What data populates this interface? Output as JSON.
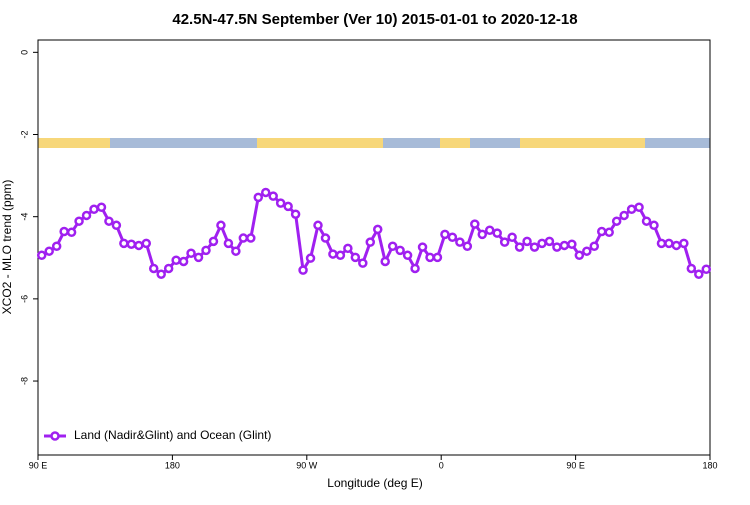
{
  "chart_data": {
    "type": "line",
    "title": "42.5N-47.5N September (Ver 10)   2015-01-01 to 2020-12-18",
    "x_label": "Longitude (deg E)",
    "y_label": "XCO2 - MLO trend (ppm)",
    "x": [
      92.5,
      97.5,
      102.5,
      107.5,
      112.5,
      117.5,
      122.5,
      127.5,
      132.5,
      137.5,
      142.5,
      147.5,
      152.5,
      157.5,
      162.5,
      167.5,
      172.5,
      177.5,
      182.5,
      187.5,
      192.5,
      197.5,
      202.5,
      207.5,
      212.5,
      217.5,
      222.5,
      227.5,
      232.5,
      237.5,
      242.5,
      247.5,
      252.5,
      257.5,
      262.5,
      267.5,
      272.5,
      277.5,
      282.5,
      287.5,
      292.5,
      297.5,
      302.5,
      307.5,
      312.5,
      317.5,
      322.5,
      327.5,
      332.5,
      337.5,
      342.5,
      347.5,
      352.5,
      357.5,
      362.5,
      367.5,
      372.5,
      377.5,
      382.5,
      387.5,
      392.5,
      397.5,
      402.5,
      407.5,
      412.5,
      417.5,
      422.5,
      427.5,
      432.5,
      437.5,
      442.5,
      447.5,
      452.5,
      457.5,
      462.5,
      467.5,
      472.5,
      477.5,
      482.5,
      487.5,
      492.5,
      497.5,
      502.5,
      507.5,
      512.5,
      517.5,
      522.5,
      527.5,
      532.5,
      537.5
    ],
    "series": [
      {
        "name": "Land (Nadir&Glint) and Ocean (Glint)",
        "color": "#a020f0",
        "values": [
          -4.94,
          -4.84,
          -4.72,
          -4.36,
          -4.38,
          -4.11,
          -3.97,
          -3.82,
          -3.77,
          -4.11,
          -4.21,
          -4.65,
          -4.67,
          -4.7,
          -4.65,
          -5.26,
          -5.4,
          -5.26,
          -5.06,
          -5.09,
          -4.89,
          -4.99,
          -4.82,
          -4.6,
          -4.21,
          -4.65,
          -4.84,
          -4.52,
          -4.52,
          -3.53,
          -3.41,
          -3.5,
          -3.67,
          -3.75,
          -3.94,
          -5.3,
          -5.01,
          -4.21,
          -4.52,
          -4.91,
          -4.94,
          -4.77,
          -4.99,
          -5.13,
          -4.62,
          -4.31,
          -5.09,
          -4.72,
          -4.82,
          -4.94,
          -5.26,
          -4.74,
          -4.99,
          -4.99,
          -4.43,
          -4.5,
          -4.62,
          -4.72,
          -4.18,
          -4.43,
          -4.33,
          -4.4,
          -4.62,
          -4.5,
          -4.74,
          -4.6,
          -4.74,
          -4.65,
          -4.6,
          -4.74,
          -4.7,
          -4.67,
          -4.94,
          -4.84,
          -4.72,
          -4.36,
          -4.38,
          -4.11,
          -3.97,
          -3.82,
          -3.77,
          -4.11,
          -4.21,
          -4.65,
          -4.65,
          -4.7,
          -4.65,
          -5.26,
          -5.4,
          -5.28
        ]
      }
    ],
    "xlim": [
      90,
      540
    ],
    "xticks": [
      {
        "value": 90,
        "label": "90 E"
      },
      {
        "value": 180,
        "label": "180"
      },
      {
        "value": 270,
        "label": "90 W"
      },
      {
        "value": 360,
        "label": "0"
      },
      {
        "value": 450,
        "label": "90 E"
      },
      {
        "value": 540,
        "label": "180"
      }
    ],
    "ylim": [
      -9.8,
      0.3
    ],
    "yticks": [
      0,
      -2,
      -4,
      -6,
      -8
    ],
    "legend": "bottom-left"
  }
}
